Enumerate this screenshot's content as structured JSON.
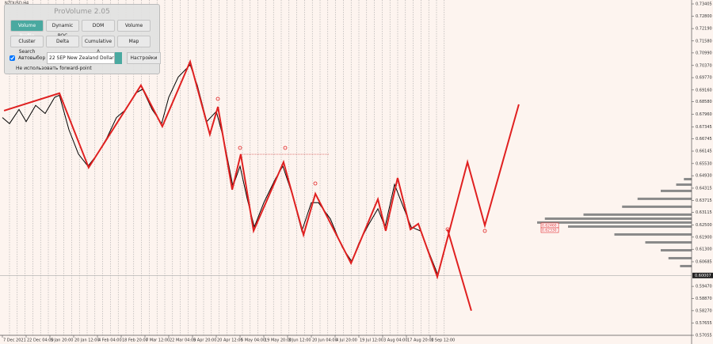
{
  "symbol": "NZDUSD,H4",
  "panel": {
    "title": "ProVolume 2.05",
    "buttons": [
      "Volume Profile",
      "Dynamic POC",
      "DOM",
      "Volume",
      "Cluster Search",
      "Delta",
      "Cumulative Δ",
      "Map"
    ],
    "checkbox": "Автовыбор",
    "select": "22 SEP New Zealand Dollar",
    "settings": "Настройки",
    "note": "Не использовать forward-point"
  },
  "chart_data": {
    "type": "line",
    "xlim": [
      -0.1,
      29
    ],
    "ylim": [
      0.56626,
      0.736
    ],
    "xticks": [
      {
        "value": 0,
        "label": "7 Dec 2021"
      },
      {
        "value": 1,
        "label": "22 Dec 04:00"
      },
      {
        "value": 2,
        "label": "5 Jan 20:00"
      },
      {
        "value": 3,
        "label": "20 Jan 12:00"
      },
      {
        "value": 4,
        "label": "4 Feb 04:00"
      },
      {
        "value": 5,
        "label": "18 Feb 20:00"
      },
      {
        "value": 6,
        "label": "7 Mar 12:00"
      },
      {
        "value": 7,
        "label": "22 Mar 04:00"
      },
      {
        "value": 8,
        "label": "5 Apr 20:00"
      },
      {
        "value": 9,
        "label": "20 Apr 12:00"
      },
      {
        "value": 10,
        "label": "5 May 04:00"
      },
      {
        "value": 11,
        "label": "19 May 20:00"
      },
      {
        "value": 12,
        "label": "3 Jun 12:00"
      },
      {
        "value": 13,
        "label": "20 Jun 04:00"
      },
      {
        "value": 14,
        "label": "4 Jul 20:00"
      },
      {
        "value": 15,
        "label": "19 Jul 12:00"
      },
      {
        "value": 16,
        "label": "3 Aug 04:00"
      },
      {
        "value": 17,
        "label": "17 Aug 20:00"
      },
      {
        "value": 18,
        "label": "1 Sep 12:00"
      }
    ],
    "yticks": [
      {
        "value": 0.73405,
        "label": "0.73405"
      },
      {
        "value": 0.728,
        "label": "0.72800"
      },
      {
        "value": 0.7219,
        "label": "0.72190"
      },
      {
        "value": 0.7158,
        "label": "0.71580"
      },
      {
        "value": 0.7099,
        "label": "0.70990"
      },
      {
        "value": 0.7037,
        "label": "0.70370"
      },
      {
        "value": 0.6977,
        "label": "0.69770"
      },
      {
        "value": 0.6916,
        "label": "0.69160"
      },
      {
        "value": 0.6858,
        "label": "0.68580"
      },
      {
        "value": 0.6796,
        "label": "0.67960"
      },
      {
        "value": 0.67345,
        "label": "0.67345"
      },
      {
        "value": 0.66745,
        "label": "0.66745"
      },
      {
        "value": 0.66145,
        "label": "0.66145"
      },
      {
        "value": 0.6553,
        "label": "0.65530"
      },
      {
        "value": 0.6493,
        "label": "0.64930"
      },
      {
        "value": 0.64315,
        "label": "0.64315"
      },
      {
        "value": 0.63715,
        "label": "0.63715"
      },
      {
        "value": 0.63115,
        "label": "0.63115"
      },
      {
        "value": 0.625,
        "label": "0.62500"
      },
      {
        "value": 0.619,
        "label": "0.61900"
      },
      {
        "value": 0.613,
        "label": "0.61300"
      },
      {
        "value": 0.60685,
        "label": "0.60685"
      },
      {
        "value": 0.5947,
        "label": "0.59470"
      },
      {
        "value": 0.5887,
        "label": "0.58870"
      },
      {
        "value": 0.5827,
        "label": "0.58270"
      },
      {
        "value": 0.57655,
        "label": "0.57655"
      },
      {
        "value": 0.57055,
        "label": "0.57055"
      }
    ],
    "current_price": {
      "value": 0.60007,
      "label": "0.60007"
    },
    "series": [
      {
        "name": "price",
        "color": "#000000",
        "x": [
          0,
          0.3,
          0.7,
          1,
          1.4,
          1.8,
          2.2,
          2.4,
          2.8,
          3.2,
          3.6,
          4,
          4.4,
          4.8,
          5.2,
          5.6,
          5.9,
          6.3,
          6.7,
          7,
          7.4,
          7.9,
          8.2,
          8.6,
          9,
          9.3,
          9.7,
          10,
          10.3,
          10.6,
          11,
          11.5,
          11.8,
          12.2,
          12.6,
          13,
          13.3,
          13.8,
          14.3,
          14.7,
          15,
          15.4,
          15.8,
          16.1,
          16.5,
          16.8,
          17.2,
          17.6,
          18,
          18.3
        ],
        "values": [
          0.678,
          0.675,
          0.682,
          0.676,
          0.684,
          0.68,
          0.688,
          0.689,
          0.672,
          0.66,
          0.654,
          0.66,
          0.668,
          0.678,
          0.682,
          0.69,
          0.692,
          0.682,
          0.675,
          0.688,
          0.698,
          0.704,
          0.694,
          0.676,
          0.681,
          0.668,
          0.644,
          0.654,
          0.638,
          0.624,
          0.636,
          0.648,
          0.654,
          0.64,
          0.622,
          0.636,
          0.636,
          0.628,
          0.614,
          0.607,
          0.616,
          0.625,
          0.633,
          0.624,
          0.645,
          0.636,
          0.624,
          0.622,
          0.61,
          0.601
        ]
      },
      {
        "name": "zigzag",
        "color": "#e02020",
        "x": [
          0.07,
          2.4,
          3.63,
          5.83,
          6.73,
          7.9,
          8.73,
          9.07,
          9.67,
          10.03,
          10.57,
          11.83,
          12.67,
          13.17,
          14.67,
          15.8,
          16.13,
          16.63,
          17.17,
          17.5,
          18.3,
          19.57,
          20.3,
          21.73
        ],
        "values": [
          0.6814,
          0.69,
          0.6533,
          0.6939,
          0.6736,
          0.7056,
          0.6697,
          0.6833,
          0.6424,
          0.6599,
          0.6221,
          0.656,
          0.6201,
          0.6404,
          0.6061,
          0.6377,
          0.6221,
          0.6482,
          0.6228,
          0.6256,
          0.5994,
          0.656,
          0.6248,
          0.6845
        ]
      },
      {
        "name": "projection",
        "color": "#e02020",
        "x": [
          18.73,
          19.73
        ],
        "values": [
          0.6228,
          0.5827
        ]
      }
    ],
    "level": {
      "x": [
        10.03,
        13.73
      ],
      "value": 0.6599
    },
    "profile": {
      "prices": [
        0.6476,
        0.6449,
        0.6418,
        0.6379,
        0.634,
        0.6301,
        0.6281,
        0.6262,
        0.6242,
        0.6203,
        0.6164,
        0.6125,
        0.6086,
        0.6047
      ],
      "volumes": [
        10,
        20,
        40,
        70,
        90,
        140,
        190,
        200,
        160,
        100,
        60,
        40,
        30,
        15
      ]
    },
    "boxes": [
      "0.62460",
      "0.62330"
    ]
  }
}
